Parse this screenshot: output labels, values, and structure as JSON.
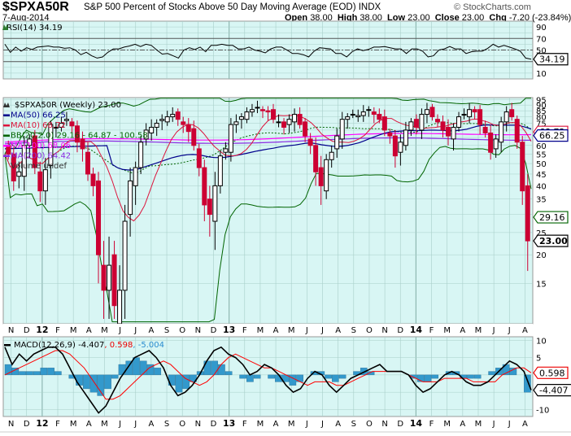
{
  "header": {
    "symbol": "$SPXA50R",
    "description": "S&P 500 Percent of Stocks Above 50 Day Moving Average (EOD) INDX",
    "date": "7-Aug-2014",
    "brand": "© StockCharts.com",
    "open_label": "Open",
    "open": "38.00",
    "high_label": "High",
    "high": "38.00",
    "low_label": "Low",
    "low": "23.00",
    "close_label": "Close",
    "close": "23.00",
    "chg_label": "Chg",
    "chg": "-7.20 (-23.84%)",
    "chg_direction": "down"
  },
  "colors": {
    "plot_bg": "#d8f6f4",
    "grid": "#a8cfc9",
    "down_candle": "#cc0033",
    "up_candle": "#ffffff",
    "ma50": "#00008b",
    "ma10": "#dc143c",
    "bb": "#006400",
    "ma100": "#ff00ff",
    "ma200": "#8a2be2",
    "macd_line": "#000000",
    "macd_signal": "#ff0000",
    "macd_hist": "#3399cc"
  },
  "rsi_panel": {
    "legend": "RSI(14) 34.19",
    "value_tag": "34.19",
    "y_ticks": [
      "90",
      "70",
      "50",
      "30",
      "10"
    ]
  },
  "main_panel": {
    "legend": [
      {
        "text": "$SPXA50R (Weekly) 23.00",
        "color": "#000000"
      },
      {
        "text": "MA(50) 66.25",
        "color": "#00008b"
      },
      {
        "text": "MA(10) 68.72",
        "color": "#dc143c"
      },
      {
        "text": "BB(20,2.0) 29.16 - 64.87 - 100.58",
        "color": "#006400"
      },
      {
        "text": "MA(100) 68.06",
        "color": "#ff00ff"
      },
      {
        "text": "MA(200) 64.42",
        "color": "#8a2be2"
      },
      {
        "text": "Volume undef",
        "color": "#333333"
      }
    ],
    "y_ticks": [
      "95",
      "90",
      "85",
      "80",
      "75",
      "70",
      "65",
      "60",
      "55",
      "50",
      "45",
      "40",
      "35",
      "30",
      "25",
      "20",
      "15"
    ],
    "tags": {
      "ma10": "68.72",
      "ma50": "66.25",
      "bb_lower": "29.16",
      "close": "23.00"
    }
  },
  "x_axis": {
    "labels": [
      "N",
      "D",
      "12",
      "F",
      "M",
      "A",
      "M",
      "J",
      "J",
      "A",
      "S",
      "O",
      "N",
      "D",
      "13",
      "F",
      "M",
      "A",
      "M",
      "J",
      "J",
      "A",
      "S",
      "O",
      "N",
      "D",
      "14",
      "F",
      "M",
      "A",
      "M",
      "J",
      "J",
      "A"
    ],
    "bold": [
      "12",
      "13",
      "14"
    ]
  },
  "macd_panel": {
    "legend_prefix": "MACD(12,26,9) -4.407",
    "legend_signal": ", 0.598",
    "legend_hist": ", -5.004",
    "y_ticks": [
      "10",
      "5",
      "-5",
      "-10"
    ],
    "tags": {
      "signal": "0.598",
      "macd": "-4.407"
    }
  },
  "chart_data": [
    {
      "type": "line",
      "title": "RSI(14)",
      "ylim": [
        0,
        100
      ],
      "reference_lines": [
        30,
        50,
        70
      ],
      "series": [
        {
          "name": "RSI(14)",
          "values": [
            60,
            46,
            55,
            48,
            54,
            51,
            55,
            56,
            57,
            55,
            55,
            53,
            54,
            50,
            42,
            46,
            40,
            36,
            38,
            46,
            52,
            52,
            55,
            57,
            60,
            56,
            60,
            58,
            50,
            43,
            44,
            40,
            36,
            50,
            54,
            51,
            55,
            47,
            58,
            58,
            60,
            58,
            58,
            52,
            52,
            55,
            50,
            48,
            45,
            52,
            55,
            55,
            50,
            44,
            44,
            42,
            38,
            48,
            54,
            53,
            52,
            44,
            44,
            38,
            47,
            52,
            49,
            51,
            55,
            55,
            56,
            54,
            52,
            52,
            44,
            52,
            52,
            48,
            38,
            40,
            50,
            52,
            56,
            52,
            52,
            44,
            47,
            48,
            48,
            53,
            60,
            55,
            58,
            55,
            52,
            48,
            36,
            34.19
          ]
        }
      ]
    },
    {
      "type": "candlestick",
      "title": "$SPXA50R (Weekly) 23.00",
      "ylim": [
        10,
        97
      ],
      "yscale": "log",
      "last": {
        "open": 38.0,
        "high": 38.0,
        "low": 23.0,
        "close": 23.0
      },
      "indicators": {
        "MA(50)": 66.25,
        "MA(10)": 68.72,
        "BB(20,2.0)": {
          "lower": 29.16,
          "middle": 64.87,
          "upper": 100.58
        },
        "MA(100)": 68.06,
        "MA(200)": 64.42
      },
      "closes": [
        55,
        42,
        46,
        60,
        64,
        48,
        38,
        47,
        74,
        72,
        75,
        78,
        73,
        62,
        58,
        45,
        40,
        20,
        14,
        18,
        12,
        14,
        28,
        42,
        48,
        62,
        70,
        72,
        75,
        78,
        80,
        82,
        78,
        74,
        69,
        60,
        48,
        33,
        30,
        40,
        54,
        58,
        74,
        76,
        80,
        84,
        86,
        88,
        85,
        84,
        78,
        76,
        72,
        78,
        82,
        74,
        66,
        60,
        46,
        40,
        52,
        56,
        66,
        78,
        80,
        82,
        81,
        84,
        86,
        82,
        78,
        70,
        66,
        54,
        62,
        70,
        76,
        72,
        82,
        86,
        80,
        76,
        70,
        66,
        72,
        80,
        82,
        86,
        84,
        74,
        68,
        56,
        64,
        76,
        84,
        80,
        62,
        38,
        23
      ]
    },
    {
      "type": "line",
      "title": "MACD(12,26,9)",
      "ylim": [
        -12,
        11
      ],
      "series": [
        {
          "name": "MACD",
          "values": [
            8,
            3,
            6,
            4,
            6,
            7,
            8,
            8,
            6,
            2,
            -2,
            -5,
            -8,
            -11,
            -9,
            -5,
            -1,
            2,
            5,
            6,
            7,
            5,
            2,
            -3,
            -6,
            -5,
            -3,
            0,
            4,
            7,
            8,
            6,
            5,
            3,
            0,
            1,
            3,
            2,
            0,
            -3,
            -5,
            -4,
            -1,
            1,
            0,
            -3,
            -5,
            -3,
            -1,
            0,
            1,
            2,
            3,
            1,
            1,
            1,
            0,
            -3,
            -5,
            -4,
            -2,
            0,
            1,
            0,
            -2,
            -3,
            -3,
            -2,
            0,
            2,
            4,
            3,
            1,
            -4.407
          ]
        },
        {
          "name": "Signal",
          "values": [
            0,
            1,
            2,
            3,
            4,
            5,
            6,
            7,
            7,
            6,
            4,
            2,
            -1,
            -4,
            -7,
            -7,
            -6,
            -4,
            -2,
            0,
            2,
            3,
            4,
            3,
            1,
            -1,
            -2,
            -3,
            -2,
            0,
            3,
            5,
            6,
            5,
            4,
            3,
            2,
            2,
            1,
            0,
            -1,
            -2,
            -3,
            -2,
            -2,
            -2,
            -3,
            -3,
            -2,
            -1,
            0,
            1,
            1,
            1,
            1,
            1,
            0,
            -1,
            -2,
            -2,
            -2,
            -1,
            -1,
            -1,
            -1,
            -2,
            -2,
            -2,
            -2,
            0,
            1,
            2,
            2,
            0.598
          ]
        },
        {
          "name": "Histogram",
          "values": [
            3,
            2,
            1,
            1,
            1,
            2,
            2,
            1,
            0,
            -1,
            -3,
            -4,
            -5,
            -6,
            -4,
            -1,
            3,
            4,
            5,
            4,
            3,
            2,
            0,
            -3,
            -5,
            -4,
            -2,
            1,
            4,
            4,
            3,
            1,
            0,
            -1,
            -2,
            -1,
            0,
            -1,
            -2,
            -2,
            -3,
            -2,
            0,
            1,
            1,
            -1,
            -2,
            -1,
            0,
            1,
            2,
            1,
            0,
            0,
            0,
            0,
            0,
            -1,
            -2,
            -2,
            -1,
            0,
            1,
            1,
            -1,
            -1,
            -1,
            0,
            1,
            2,
            3,
            2,
            0,
            -5.004
          ]
        }
      ]
    }
  ]
}
